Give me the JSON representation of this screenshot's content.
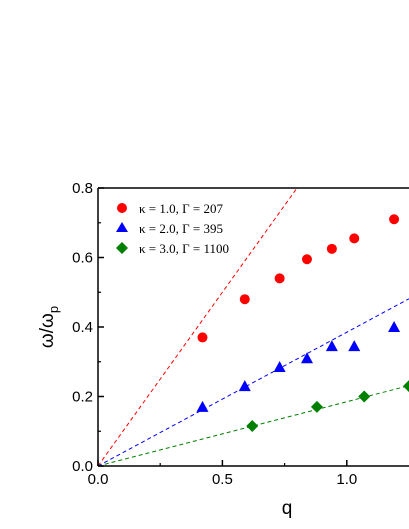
{
  "chart_data": {
    "type": "scatter",
    "xlabel": "q",
    "ylabel_main": "ω/ω",
    "ylabel_sub": "p",
    "xlim": [
      0.0,
      1.25
    ],
    "ylim": [
      0.0,
      0.8
    ],
    "xticks": [
      0.0,
      0.5,
      1.0
    ],
    "xtick_labels": [
      "0.0",
      "0.5",
      "1.0"
    ],
    "yticks": [
      0.0,
      0.2,
      0.4,
      0.6,
      0.8
    ],
    "ytick_labels": [
      "0.0",
      "0.2",
      "0.4",
      "0.6",
      "0.8"
    ],
    "legend_position": "top-left",
    "grid": false,
    "series": [
      {
        "name": "κ = 1.0, Γ = 207",
        "color": "#ff0000",
        "marker": "circle",
        "x": [
          0.42,
          0.59,
          0.73,
          0.84,
          0.94,
          1.03,
          1.19
        ],
        "y": [
          0.37,
          0.48,
          0.54,
          0.595,
          0.625,
          0.655,
          0.71
        ],
        "fit_slope": 1.0
      },
      {
        "name": "κ = 2.0, Γ = 395",
        "color": "#0000ff",
        "marker": "triangle",
        "x": [
          0.42,
          0.59,
          0.73,
          0.84,
          0.94,
          1.03,
          1.19
        ],
        "y": [
          0.17,
          0.23,
          0.285,
          0.31,
          0.345,
          0.345,
          0.4
        ],
        "fit_slope": 0.385
      },
      {
        "name": "κ = 3.0, Γ = 1100",
        "color": "#008000",
        "marker": "diamond",
        "x": [
          0.62,
          0.88,
          1.07,
          1.25
        ],
        "y": [
          0.115,
          0.17,
          0.2,
          0.23
        ],
        "fit_slope": 0.185
      }
    ]
  }
}
